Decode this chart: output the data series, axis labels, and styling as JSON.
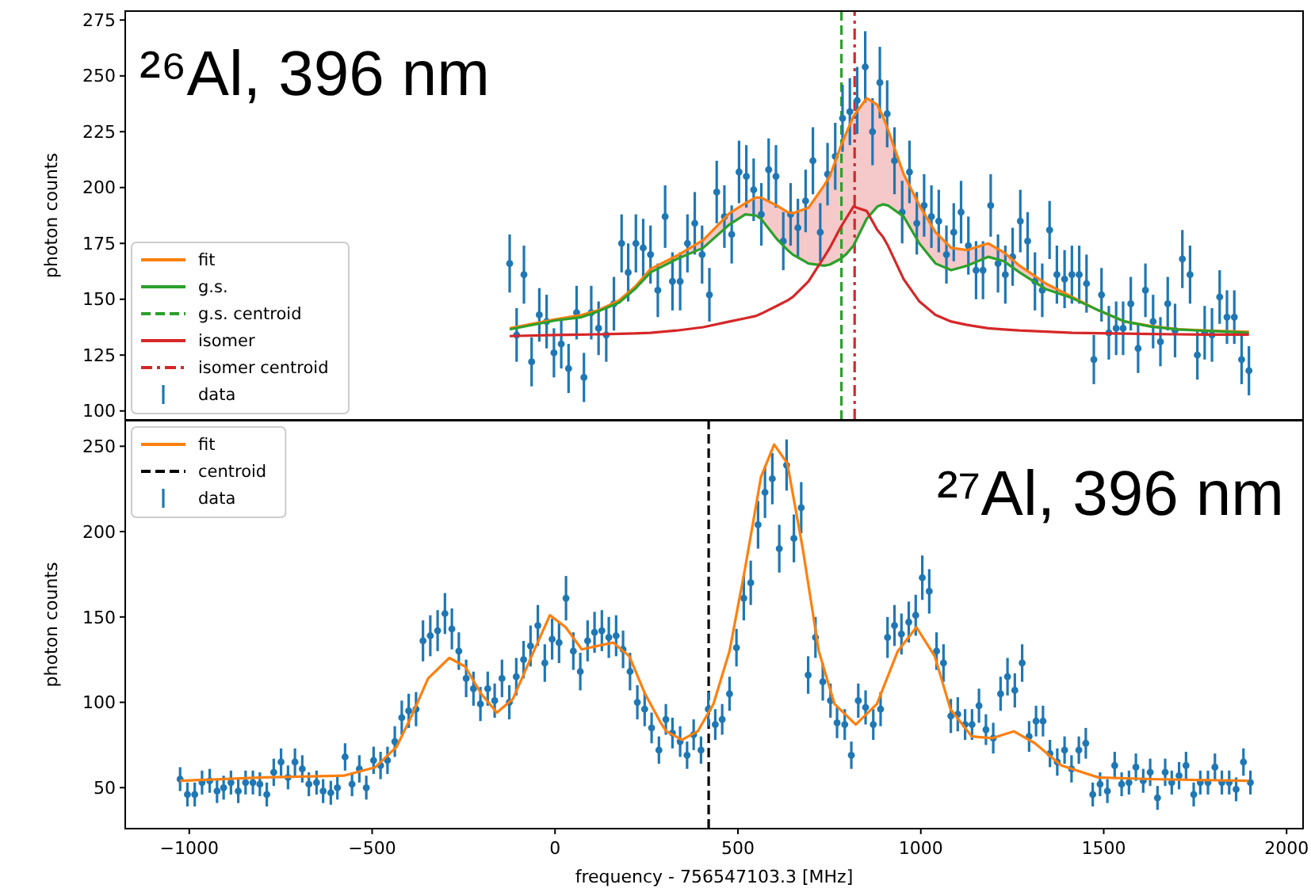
{
  "chart_data": [
    {
      "type": "scatter",
      "ylabel": "photon counts",
      "annotations": [
        "²⁶Al, 396 nm"
      ],
      "xlim": [
        -1175,
        2045
      ],
      "ylim": [
        96,
        279
      ],
      "xticks": [
        {
          "value": -1000,
          "label": null
        },
        {
          "value": -500,
          "label": null
        },
        {
          "value": 0,
          "label": null
        },
        {
          "value": 500,
          "label": null
        },
        {
          "value": 1000,
          "label": null
        },
        {
          "value": 1500,
          "label": null
        },
        {
          "value": 2000,
          "label": null
        }
      ],
      "yticks": [
        100,
        125,
        150,
        175,
        200,
        225,
        250,
        275
      ],
      "tick_labels": "y",
      "grid": false,
      "legend": "bottom left",
      "series": [
        {
          "type": "line",
          "name": "fit",
          "color": "#ff7f0e",
          "x": [
            -124,
            1,
            73,
            117,
            175,
            218,
            261,
            333,
            405,
            477,
            520,
            549,
            563,
            606,
            636,
            650,
            693,
            736,
            751,
            780,
            795,
            816,
            852,
            881,
            896,
            910,
            953,
            996,
            1040,
            1083,
            1126,
            1184,
            1227,
            1270,
            1342,
            1414,
            1486,
            1558,
            1630,
            1702,
            1774,
            1897
          ],
          "values": [
            137,
            141,
            143,
            145,
            149.5,
            155.5,
            163.5,
            169.5,
            176.5,
            188.5,
            193,
            195.5,
            195.5,
            192,
            189,
            188.5,
            191,
            201,
            205,
            218,
            224,
            232,
            240,
            237,
            232,
            226,
            206,
            192,
            180,
            173,
            172,
            175,
            171,
            165,
            157,
            151,
            145,
            140,
            138,
            136.6,
            136,
            135.4
          ]
        },
        {
          "type": "line",
          "name": "g.s.",
          "color": "#2ca02c",
          "x": [
            -124,
            1,
            73,
            117,
            175,
            218,
            261,
            333,
            405,
            477,
            520,
            549,
            563,
            606,
            636,
            650,
            693,
            736,
            751,
            780,
            795,
            816,
            852,
            881,
            896,
            910,
            953,
            996,
            1040,
            1083,
            1126,
            1184,
            1227,
            1270,
            1342,
            1414,
            1486,
            1558,
            1630,
            1702,
            1774,
            1897
          ],
          "values": [
            136.5,
            140.5,
            142,
            144.5,
            148.5,
            154.5,
            162,
            168,
            173,
            183.5,
            188,
            187.5,
            186,
            177,
            172,
            170,
            166,
            165,
            165.5,
            168,
            170,
            174,
            186,
            191.5,
            192.5,
            192,
            187,
            175,
            166,
            163,
            165,
            169,
            167,
            162,
            154.5,
            150.5,
            145,
            140,
            137.7,
            136.5,
            135.9,
            135
          ]
        },
        {
          "type": "line",
          "name": "g.s. centroid",
          "color": "#2ca02c",
          "line_style": "dashed",
          "x": [
            783,
            783
          ],
          "values": [
            96,
            279
          ]
        },
        {
          "type": "line",
          "name": "isomer",
          "color": "#d62728",
          "x": [
            -124,
            1,
            73,
            117,
            175,
            218,
            261,
            333,
            405,
            477,
            520,
            549,
            563,
            606,
            636,
            650,
            693,
            736,
            751,
            780,
            795,
            816,
            852,
            881,
            896,
            910,
            953,
            996,
            1040,
            1083,
            1126,
            1184,
            1227,
            1270,
            1342,
            1414,
            1486,
            1558,
            1630,
            1702,
            1774,
            1897
          ],
          "values": [
            133.5,
            134,
            134.2,
            134.3,
            134.5,
            134.7,
            135,
            136,
            137.5,
            140,
            141.5,
            142.5,
            143.5,
            147,
            149.5,
            151,
            158,
            169,
            173,
            182,
            186,
            191.5,
            189.5,
            181,
            178,
            174,
            159,
            149,
            143,
            140,
            138.5,
            137,
            136.5,
            136,
            135.5,
            135,
            134.8,
            134.6,
            134.4,
            134.3,
            134.2,
            134.2
          ],
          "upper": [
            137,
            141,
            143,
            145,
            149.5,
            155.5,
            163.5,
            169.5,
            176.5,
            188.5,
            193,
            195.5,
            195.5,
            192,
            189,
            188.5,
            191,
            201,
            205,
            218,
            224,
            232,
            240,
            237,
            232,
            226,
            206,
            192,
            180,
            173,
            172,
            175,
            171,
            165,
            157,
            151,
            145,
            140,
            138,
            136.6,
            136,
            135.4
          ],
          "lower": [
            136.5,
            140.5,
            142,
            144.5,
            148.5,
            154.5,
            162,
            168,
            173,
            183.5,
            188,
            187.5,
            186,
            177,
            172,
            170,
            166,
            165,
            165.5,
            168,
            170,
            174,
            186,
            191.5,
            192.5,
            192,
            187,
            175,
            166,
            163,
            165,
            169,
            167,
            162,
            154.5,
            150.5,
            145,
            140,
            137.7,
            136.5,
            135.9,
            135
          ]
        },
        {
          "type": "line",
          "name": "isomer centroid",
          "color": "#d62728",
          "line_style": "dashdot",
          "x": [
            819,
            819
          ],
          "values": [
            96,
            279
          ]
        },
        {
          "name": "data",
          "color": "#1f77b4",
          "marker": "circle",
          "x": [
            -124,
            -105,
            -85,
            -64,
            -43,
            -23,
            -3,
            17,
            37,
            59,
            79,
            99,
            119,
            140,
            161,
            182,
            200,
            221,
            241,
            261,
            281,
            301,
            321,
            342,
            362,
            382,
            402,
            422,
            442,
            463,
            483,
            503,
            523,
            543,
            564,
            584,
            604,
            624,
            644,
            664,
            685,
            705,
            725,
            745,
            766,
            786,
            806,
            826,
            848,
            868,
            888,
            908,
            928,
            949,
            969,
            989,
            1009,
            1029,
            1049,
            1070,
            1090,
            1110,
            1130,
            1151,
            1170,
            1191,
            1211,
            1231,
            1251,
            1272,
            1292,
            1312,
            1332,
            1352,
            1372,
            1393,
            1413,
            1433,
            1453,
            1473,
            1494,
            1514,
            1534,
            1553,
            1574,
            1594,
            1614,
            1635,
            1655,
            1675,
            1695,
            1715,
            1736,
            1756,
            1776,
            1796,
            1817,
            1837,
            1857,
            1877,
            1897
          ],
          "values": [
            166,
            134,
            161,
            122,
            143,
            140,
            126,
            130,
            119,
            144,
            115,
            144,
            137,
            134,
            148,
            175,
            162,
            175,
            173,
            170,
            154,
            187,
            158,
            158,
            175,
            184,
            170,
            152,
            198,
            187,
            179,
            207,
            205,
            199,
            188,
            208,
            205,
            176,
            188,
            182,
            194,
            212,
            180,
            206,
            214,
            231,
            234,
            239,
            254,
            225,
            247,
            233,
            212,
            189,
            207,
            184,
            192,
            187,
            185,
            170,
            180,
            189,
            174,
            163,
            163,
            192,
            166,
            161,
            169,
            185,
            176,
            158,
            154,
            181,
            161,
            159,
            161,
            161,
            157,
            123,
            152,
            135,
            137,
            137,
            148,
            128,
            154,
            140,
            131,
            148,
            136,
            168,
            161,
            125,
            135,
            134,
            151,
            142,
            142,
            123,
            118
          ],
          "errors": [
            13,
            12,
            13,
            11,
            12,
            12,
            11,
            11,
            11,
            12,
            11,
            12,
            12,
            12,
            12,
            13,
            13,
            13,
            13,
            13,
            12,
            14,
            13,
            13,
            13,
            14,
            13,
            12,
            14,
            14,
            13,
            14,
            14,
            14,
            14,
            14,
            14,
            13,
            14,
            13,
            14,
            15,
            13,
            14,
            15,
            15,
            15,
            15,
            16,
            15,
            16,
            15,
            15,
            14,
            14,
            14,
            14,
            14,
            14,
            13,
            13,
            14,
            13,
            13,
            13,
            14,
            13,
            13,
            13,
            14,
            13,
            13,
            12,
            13,
            13,
            13,
            13,
            13,
            13,
            11,
            12,
            12,
            12,
            12,
            12,
            11,
            12,
            12,
            11,
            12,
            12,
            13,
            13,
            11,
            12,
            12,
            12,
            12,
            12,
            11,
            11
          ]
        }
      ]
    },
    {
      "type": "scatter",
      "xlabel": "frequency - 756547103.3 [MHz]",
      "ylabel": "photon counts",
      "annotations": [
        "²⁷Al, 396 nm"
      ],
      "xlim": [
        -1175,
        2045
      ],
      "ylim": [
        26,
        265
      ],
      "xticks": [
        {
          "value": -1000,
          "label": "−1000"
        },
        {
          "value": -500,
          "label": "−500"
        },
        0,
        500,
        1000,
        1500,
        2000
      ],
      "yticks": [
        50,
        100,
        150,
        200,
        250
      ],
      "grid": false,
      "legend": "top left",
      "series": [
        {
          "type": "line",
          "name": "fit",
          "color": "#ff7f0e",
          "x": [
            -1025,
            -800,
            -578,
            -491,
            -433,
            -390,
            -347,
            -289,
            -246,
            -202,
            -159,
            -115,
            -58,
            -14,
            29,
            73,
            116,
            159,
            203,
            246,
            289,
            304,
            347,
            390,
            433,
            477,
            520,
            563,
            599,
            635,
            678,
            721,
            764,
            822,
            880,
            937,
            988,
            1038,
            1081,
            1139,
            1196,
            1254,
            1312,
            1384,
            1485,
            1629,
            1896
          ],
          "values": [
            54,
            56,
            57,
            62,
            74,
            93,
            114,
            126,
            121,
            105,
            94,
            102,
            130,
            151,
            144,
            131,
            133,
            135,
            127,
            105,
            88,
            83,
            78,
            83,
            99,
            130,
            179,
            232,
            251,
            240,
            189,
            130,
            99,
            87,
            99,
            130,
            144,
            127,
            96,
            80,
            79,
            83,
            76,
            63,
            56,
            55,
            54
          ]
        },
        {
          "type": "line",
          "name": "centroid",
          "color": "#000000",
          "line_style": "dashed",
          "x": [
            420,
            420
          ],
          "values": [
            26,
            265
          ]
        },
        {
          "name": "data",
          "color": "#1f77b4",
          "marker": "circle",
          "x": [
            -1025,
            -1005,
            -985,
            -965,
            -944,
            -924,
            -906,
            -886,
            -866,
            -846,
            -826,
            -807,
            -788,
            -769,
            -749,
            -730,
            -711,
            -691,
            -673,
            -652,
            -634,
            -613,
            -595,
            -574,
            -555,
            -535,
            -516,
            -496,
            -477,
            -458,
            -438,
            -419,
            -400,
            -380,
            -361,
            -341,
            -321,
            -301,
            -282,
            -263,
            -243,
            -223,
            -204,
            -184,
            -165,
            -145,
            -125,
            -106,
            -86,
            -67,
            -47,
            -28,
            -8,
            11,
            30,
            50,
            69,
            89,
            108,
            128,
            147,
            167,
            186,
            205,
            225,
            245,
            264,
            284,
            303,
            321,
            342,
            361,
            379,
            399,
            419,
            438,
            457,
            477,
            496,
            516,
            535,
            555,
            574,
            594,
            613,
            633,
            653,
            673,
            692,
            712,
            732,
            753,
            771,
            792,
            810,
            829,
            849,
            870,
            890,
            909,
            928,
            947,
            967,
            986,
            1004,
            1023,
            1043,
            1062,
            1082,
            1101,
            1121,
            1140,
            1159,
            1178,
            1198,
            1218,
            1237,
            1257,
            1277,
            1296,
            1315,
            1334,
            1353,
            1373,
            1393,
            1412,
            1432,
            1451,
            1470,
            1490,
            1510,
            1530,
            1549,
            1569,
            1588,
            1608,
            1627,
            1647,
            1668,
            1686,
            1706,
            1725,
            1746,
            1764,
            1785,
            1804,
            1823,
            1843,
            1862,
            1882,
            1901
          ],
          "values": [
            55,
            46,
            46,
            53,
            54,
            48,
            50,
            53,
            48,
            53,
            53,
            52,
            46,
            59,
            65,
            56,
            65,
            61,
            52,
            53,
            48,
            47,
            50,
            68,
            52,
            61,
            50,
            66,
            63,
            66,
            77,
            91,
            95,
            96,
            136,
            139,
            142,
            152,
            143,
            130,
            114,
            108,
            99,
            108,
            101,
            114,
            100,
            115,
            125,
            133,
            145,
            123,
            137,
            135,
            161,
            130,
            118,
            136,
            141,
            142,
            138,
            139,
            131,
            118,
            100,
            96,
            85,
            72,
            90,
            82,
            77,
            69,
            81,
            72,
            96,
            87,
            90,
            105,
            132,
            161,
            170,
            204,
            223,
            231,
            190,
            239,
            196,
            214,
            116,
            138,
            112,
            101,
            88,
            87,
            69,
            101,
            97,
            87,
            96,
            138,
            145,
            140,
            147,
            151,
            173,
            165,
            130,
            123,
            92,
            93,
            87,
            87,
            98,
            84,
            79,
            105,
            115,
            107,
            123,
            80,
            89,
            89,
            70,
            65,
            72,
            61,
            72,
            76,
            46,
            52,
            48,
            63,
            52,
            53,
            62,
            54,
            59,
            44,
            59,
            53,
            57,
            63,
            46,
            53,
            53,
            62,
            53,
            53,
            49,
            65,
            53
          ],
          "errors": [
            7,
            7,
            7,
            7,
            7,
            7,
            7,
            7,
            7,
            7,
            7,
            7,
            7,
            8,
            8,
            7,
            8,
            8,
            7,
            7,
            7,
            7,
            7,
            8,
            7,
            8,
            7,
            8,
            8,
            8,
            9,
            10,
            10,
            10,
            12,
            12,
            12,
            12,
            12,
            11,
            11,
            10,
            10,
            10,
            10,
            11,
            10,
            11,
            11,
            12,
            12,
            11,
            12,
            12,
            13,
            11,
            11,
            12,
            12,
            12,
            12,
            12,
            11,
            11,
            10,
            10,
            9,
            8,
            9,
            9,
            9,
            8,
            9,
            8,
            10,
            9,
            9,
            10,
            11,
            13,
            13,
            14,
            15,
            15,
            14,
            15,
            14,
            15,
            11,
            12,
            11,
            10,
            9,
            9,
            8,
            10,
            10,
            9,
            10,
            12,
            12,
            12,
            12,
            12,
            13,
            13,
            11,
            11,
            10,
            10,
            9,
            9,
            10,
            9,
            9,
            10,
            11,
            10,
            11,
            9,
            9,
            9,
            8,
            8,
            8,
            8,
            8,
            9,
            7,
            7,
            7,
            8,
            7,
            7,
            8,
            7,
            8,
            7,
            8,
            7,
            8,
            8,
            7,
            7,
            7,
            8,
            7,
            7,
            7,
            8,
            7
          ]
        }
      ]
    }
  ]
}
